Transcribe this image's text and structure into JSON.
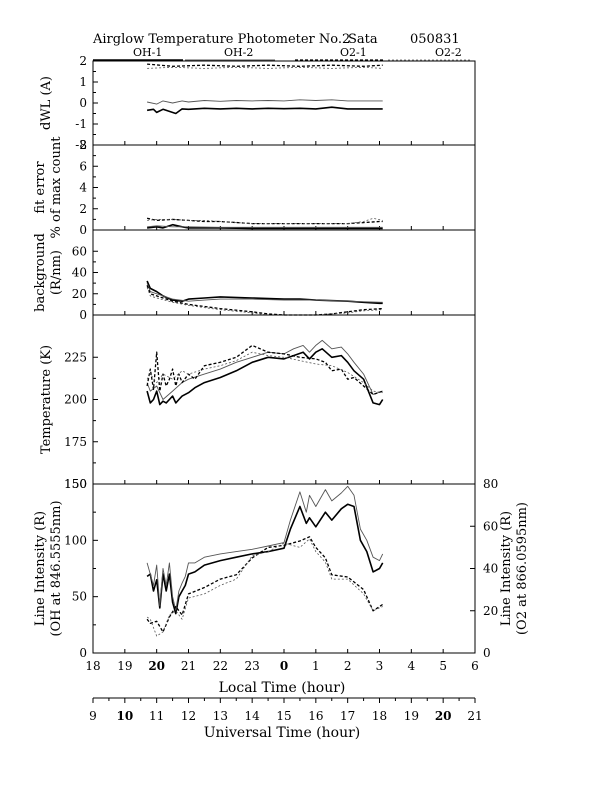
{
  "header": {
    "title": "Airglow Temperature Photometer No.2",
    "site": "Sata",
    "date": "050831"
  },
  "legend": [
    {
      "name": "OH-1",
      "color": "#000000",
      "dash": "",
      "width": 1.6
    },
    {
      "name": "OH-2",
      "color": "#555555",
      "dash": "",
      "width": 0.9
    },
    {
      "name": "O2-1",
      "color": "#000000",
      "dash": "3,2",
      "width": 1.3
    },
    {
      "name": "O2-2",
      "color": "#555555",
      "dash": "2,2",
      "width": 0.8
    }
  ],
  "axes": {
    "local_time_label": "Local Time (hour)",
    "universal_time_label": "Universal Time (hour)",
    "local_ticks": [
      "18",
      "19",
      "20",
      "21",
      "22",
      "23",
      "0",
      "1",
      "2",
      "3",
      "4",
      "5",
      "6"
    ],
    "universal_ticks": [
      "9",
      "10",
      "11",
      "12",
      "13",
      "14",
      "15",
      "16",
      "17",
      "18",
      "19",
      "20",
      "21"
    ]
  },
  "chart_data": [
    {
      "type": "line",
      "id": "dwl",
      "title": "",
      "ylabel": [
        "dWL (A)"
      ],
      "ylim": [
        -2,
        2
      ],
      "yticks": [
        "2",
        "1",
        "0",
        "-1",
        "-2"
      ],
      "xlim": [
        9,
        21
      ],
      "series": [
        {
          "name": "OH-1",
          "x": [
            10.7,
            10.9,
            11.0,
            11.2,
            11.4,
            11.6,
            11.8,
            12.0,
            12.5,
            13.0,
            13.5,
            14.0,
            14.5,
            15.0,
            15.5,
            16.0,
            16.5,
            17.0,
            17.5,
            18.1
          ],
          "y": [
            -0.35,
            -0.3,
            -0.45,
            -0.3,
            -0.4,
            -0.5,
            -0.28,
            -0.3,
            -0.25,
            -0.28,
            -0.25,
            -0.28,
            -0.25,
            -0.27,
            -0.25,
            -0.28,
            -0.2,
            -0.28,
            -0.28,
            -0.28
          ]
        },
        {
          "name": "OH-2",
          "x": [
            10.7,
            11.0,
            11.2,
            11.5,
            11.8,
            12.0,
            12.5,
            13.0,
            13.5,
            14.0,
            14.5,
            15.0,
            15.5,
            16.0,
            16.5,
            17.0,
            17.5,
            18.1
          ],
          "y": [
            0.05,
            -0.05,
            0.1,
            0.0,
            0.1,
            0.05,
            0.12,
            0.08,
            0.12,
            0.1,
            0.12,
            0.1,
            0.15,
            0.12,
            0.15,
            0.1,
            0.1,
            0.1
          ]
        },
        {
          "name": "O2-1",
          "x": [
            10.7,
            11.5,
            12.5,
            13.5,
            14.5,
            15.5,
            16.5,
            17.5,
            18.1
          ],
          "y": [
            1.85,
            1.75,
            1.8,
            1.75,
            1.8,
            1.75,
            1.8,
            1.75,
            1.8
          ]
        },
        {
          "name": "O2-2",
          "x": [
            10.7,
            11.5,
            12.5,
            13.5,
            14.5,
            15.5,
            16.5,
            17.5,
            18.1
          ],
          "y": [
            1.65,
            1.7,
            1.65,
            1.7,
            1.65,
            1.7,
            1.65,
            1.7,
            1.65
          ]
        }
      ]
    },
    {
      "type": "line",
      "id": "fit",
      "title": "",
      "ylabel": [
        "fit error",
        "% of max count"
      ],
      "ylim": [
        0,
        8
      ],
      "yticks": [
        "8",
        "6",
        "4",
        "2",
        "0"
      ],
      "xlim": [
        9,
        21
      ],
      "series": [
        {
          "name": "OH-1",
          "x": [
            10.7,
            11.0,
            11.2,
            11.5,
            11.8,
            12.0,
            13.0,
            14.0,
            15.0,
            16.0,
            17.0,
            18.1
          ],
          "y": [
            0.2,
            0.3,
            0.2,
            0.5,
            0.3,
            0.2,
            0.2,
            0.15,
            0.15,
            0.15,
            0.15,
            0.15
          ]
        },
        {
          "name": "OH-2",
          "x": [
            10.7,
            11.0,
            11.5,
            12.0,
            13.0,
            14.0,
            15.0,
            16.0,
            17.0,
            18.1
          ],
          "y": [
            0.3,
            0.4,
            0.3,
            0.3,
            0.25,
            0.25,
            0.25,
            0.25,
            0.25,
            0.25
          ]
        },
        {
          "name": "O2-1",
          "x": [
            10.7,
            11.0,
            11.5,
            12.0,
            12.5,
            13.0,
            14.0,
            15.0,
            16.0,
            17.0,
            17.5,
            18.0,
            18.1
          ],
          "y": [
            1.1,
            0.9,
            1.0,
            0.9,
            0.8,
            0.8,
            0.6,
            0.6,
            0.6,
            0.6,
            0.7,
            0.8,
            0.8
          ]
        },
        {
          "name": "O2-2",
          "x": [
            10.7,
            11.0,
            11.5,
            12.0,
            12.5,
            13.0,
            14.0,
            15.0,
            16.0,
            17.0,
            17.5,
            17.8,
            18.1
          ],
          "y": [
            0.9,
            1.0,
            1.0,
            0.9,
            0.9,
            0.8,
            0.6,
            0.6,
            0.6,
            0.6,
            0.8,
            1.1,
            0.9
          ]
        }
      ]
    },
    {
      "type": "line",
      "id": "bg",
      "title": "",
      "ylabel": [
        "background",
        "(R/nm)"
      ],
      "ylim": [
        0,
        80
      ],
      "yticks": [
        "60",
        "40",
        "20",
        "0"
      ],
      "xlim": [
        9,
        21
      ],
      "series": [
        {
          "name": "OH-1",
          "x": [
            10.7,
            10.8,
            11.0,
            11.2,
            11.5,
            11.8,
            12.0,
            12.5,
            13.0,
            14.0,
            15.0,
            15.5,
            16.0,
            17.0,
            17.5,
            18.0,
            18.1
          ],
          "y": [
            32,
            25,
            22,
            18,
            14,
            13,
            15,
            16,
            17,
            16,
            15,
            15,
            14,
            13,
            12,
            11,
            11
          ]
        },
        {
          "name": "OH-2",
          "x": [
            10.7,
            10.8,
            11.0,
            11.5,
            12.0,
            12.5,
            13.0,
            14.0,
            15.0,
            16.0,
            17.0,
            18.1
          ],
          "y": [
            30,
            22,
            20,
            15,
            13,
            14,
            15,
            15,
            14,
            14,
            13,
            12
          ]
        },
        {
          "name": "O2-1",
          "x": [
            10.7,
            10.8,
            11.0,
            11.5,
            12.0,
            12.5,
            13.0,
            14.0,
            14.5,
            15.0,
            16.0,
            16.5,
            17.0,
            17.5,
            18.1
          ],
          "y": [
            28,
            20,
            18,
            13,
            10,
            8,
            6,
            3,
            1,
            0,
            0,
            1,
            3,
            5,
            6
          ]
        },
        {
          "name": "O2-2",
          "x": [
            10.7,
            10.8,
            11.0,
            11.5,
            12.0,
            12.5,
            13.0,
            14.0,
            14.5,
            15.0,
            16.0,
            16.5,
            17.0,
            17.5,
            18.1
          ],
          "y": [
            26,
            18,
            16,
            12,
            9,
            7,
            5,
            2,
            0,
            0,
            0,
            1,
            2,
            4,
            5
          ]
        }
      ]
    },
    {
      "type": "line",
      "id": "temp",
      "title": "",
      "ylabel": [
        "Temperature (K)"
      ],
      "ylim": [
        150,
        250
      ],
      "yticks": [
        "225",
        "200",
        "175",
        "150"
      ],
      "xlim": [
        9,
        21
      ],
      "series": [
        {
          "name": "OH-1",
          "x": [
            10.7,
            10.8,
            10.9,
            11.0,
            11.1,
            11.2,
            11.3,
            11.4,
            11.5,
            11.6,
            11.7,
            11.8,
            12.0,
            12.2,
            12.5,
            13.0,
            13.5,
            14.0,
            14.5,
            15.0,
            15.3,
            15.6,
            15.8,
            16.0,
            16.2,
            16.5,
            16.8,
            17.0,
            17.2,
            17.5,
            17.8,
            18.0,
            18.1
          ],
          "y": [
            205,
            198,
            200,
            205,
            197,
            199,
            198,
            200,
            202,
            198,
            200,
            202,
            204,
            207,
            210,
            213,
            217,
            222,
            225,
            224,
            226,
            228,
            224,
            228,
            230,
            225,
            226,
            222,
            217,
            212,
            198,
            197,
            200
          ]
        },
        {
          "name": "OH-2",
          "x": [
            10.7,
            10.8,
            11.0,
            11.2,
            11.5,
            11.8,
            12.0,
            12.5,
            13.0,
            13.5,
            14.0,
            14.5,
            15.0,
            15.3,
            15.6,
            15.8,
            16.0,
            16.2,
            16.5,
            16.8,
            17.0,
            17.2,
            17.5,
            17.8,
            18.1
          ],
          "y": [
            210,
            205,
            208,
            200,
            205,
            210,
            212,
            215,
            218,
            222,
            225,
            228,
            227,
            230,
            232,
            228,
            232,
            235,
            230,
            231,
            227,
            222,
            215,
            203,
            205
          ]
        },
        {
          "name": "O2-1",
          "x": [
            10.7,
            10.8,
            10.9,
            11.0,
            11.1,
            11.2,
            11.3,
            11.4,
            11.5,
            11.6,
            11.7,
            11.8,
            12.0,
            12.2,
            12.5,
            13.0,
            13.5,
            14.0,
            14.5,
            15.0,
            15.5,
            16.0,
            16.3,
            16.5,
            16.8,
            17.0,
            17.2,
            17.5,
            17.8,
            18.1
          ],
          "y": [
            208,
            218,
            206,
            228,
            205,
            215,
            208,
            212,
            218,
            208,
            215,
            210,
            215,
            212,
            220,
            222,
            225,
            232,
            228,
            227,
            225,
            224,
            222,
            217,
            218,
            212,
            213,
            208,
            203,
            205
          ]
        },
        {
          "name": "O2-2",
          "x": [
            10.7,
            10.8,
            11.0,
            11.2,
            11.5,
            11.8,
            12.0,
            12.5,
            13.0,
            13.5,
            14.0,
            14.5,
            15.0,
            15.5,
            16.0,
            16.5,
            17.0,
            17.5,
            17.8,
            18.1
          ],
          "y": [
            212,
            215,
            210,
            215,
            212,
            217,
            215,
            218,
            220,
            223,
            228,
            226,
            225,
            223,
            221,
            220,
            216,
            210,
            205,
            204
          ]
        }
      ]
    },
    {
      "type": "line",
      "id": "int",
      "title": "",
      "ylabel": [
        "Line Intensity (R)",
        "(OH at 846.5555nm)"
      ],
      "ylabel_right": [
        "Line Intensity (R)",
        "(O2 at 866.0595nm)"
      ],
      "ylim": [
        0,
        150
      ],
      "ylim_right": [
        0,
        80
      ],
      "yticks": [
        "150",
        "100",
        "50",
        "0"
      ],
      "yticks_right": [
        "80",
        "60",
        "40",
        "20",
        "0"
      ],
      "xlim": [
        9,
        21
      ],
      "series": [
        {
          "name": "OH-1",
          "axis": "left",
          "x": [
            10.7,
            10.8,
            10.9,
            11.0,
            11.1,
            11.2,
            11.3,
            11.4,
            11.5,
            11.6,
            11.7,
            11.8,
            11.9,
            12.0,
            12.2,
            12.5,
            13.0,
            13.5,
            14.0,
            14.5,
            15.0,
            15.2,
            15.5,
            15.7,
            15.8,
            16.0,
            16.3,
            16.5,
            16.8,
            17.0,
            17.2,
            17.4,
            17.6,
            17.8,
            18.0,
            18.1
          ],
          "y": [
            68,
            70,
            55,
            65,
            40,
            70,
            55,
            70,
            45,
            35,
            50,
            55,
            60,
            70,
            72,
            78,
            82,
            85,
            88,
            90,
            93,
            110,
            130,
            115,
            120,
            112,
            125,
            118,
            128,
            132,
            130,
            100,
            90,
            72,
            75,
            80
          ]
        },
        {
          "name": "OH-2",
          "axis": "left",
          "x": [
            10.7,
            10.8,
            10.9,
            11.0,
            11.1,
            11.2,
            11.3,
            11.4,
            11.5,
            11.6,
            11.7,
            11.8,
            11.9,
            12.0,
            12.2,
            12.5,
            13.0,
            13.5,
            14.0,
            14.5,
            15.0,
            15.2,
            15.5,
            15.7,
            15.8,
            16.0,
            16.3,
            16.5,
            16.8,
            17.0,
            17.2,
            17.4,
            17.6,
            17.8,
            18.0,
            18.1
          ],
          "y": [
            80,
            70,
            60,
            78,
            42,
            75,
            60,
            80,
            50,
            38,
            55,
            62,
            68,
            80,
            80,
            85,
            88,
            90,
            92,
            95,
            98,
            118,
            143,
            125,
            140,
            130,
            145,
            135,
            142,
            148,
            140,
            110,
            100,
            85,
            82,
            88
          ]
        },
        {
          "name": "O2-1",
          "axis": "right",
          "x": [
            10.7,
            10.8,
            11.0,
            11.2,
            11.4,
            11.6,
            11.8,
            12.0,
            12.5,
            13.0,
            13.5,
            14.0,
            14.5,
            15.0,
            15.5,
            15.8,
            16.0,
            16.3,
            16.5,
            17.0,
            17.5,
            17.8,
            18.1
          ],
          "y": [
            16,
            14,
            15,
            10,
            17,
            22,
            18,
            28,
            31,
            35,
            37,
            45,
            50,
            51,
            53,
            55,
            50,
            45,
            37,
            36,
            30,
            20,
            23
          ]
        },
        {
          "name": "O2-2",
          "axis": "right",
          "x": [
            10.7,
            10.8,
            11.0,
            11.2,
            11.4,
            11.6,
            11.8,
            12.0,
            12.5,
            13.0,
            13.5,
            14.0,
            14.5,
            15.0,
            15.5,
            15.8,
            16.0,
            16.3,
            16.5,
            17.0,
            17.5,
            17.8,
            18.1
          ],
          "y": [
            17,
            16,
            8,
            10,
            18,
            20,
            16,
            26,
            28,
            32,
            35,
            46,
            48,
            52,
            50,
            54,
            48,
            43,
            35,
            35,
            28,
            20,
            22
          ]
        }
      ]
    }
  ]
}
